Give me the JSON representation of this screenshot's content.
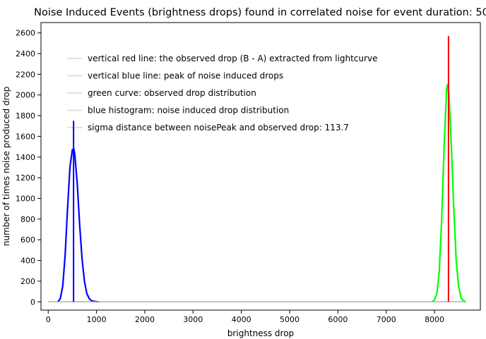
{
  "chart_data": {
    "type": "line",
    "title": "Noise Induced Events (brightness drops) found in correlated noise for event duration: 50",
    "xlabel": "brightness drop",
    "ylabel": "number of times noise produced drop",
    "xlim": [
      -150,
      8950
    ],
    "ylim": [
      -80,
      2700
    ],
    "x_ticks": [
      0,
      1000,
      2000,
      3000,
      4000,
      5000,
      6000,
      7000,
      8000
    ],
    "y_ticks": [
      0,
      200,
      400,
      600,
      800,
      1000,
      1200,
      1400,
      1600,
      1800,
      2000,
      2200,
      2400,
      2600
    ],
    "grid": false,
    "legend": {
      "placement": "top-left",
      "entries": [
        {
          "label": "vertical red line: the observed drop (B - A) extracted from lightcurve",
          "color": "#d8d8d8"
        },
        {
          "label": "vertical blue line: peak of noise induced drops",
          "color": "#d8d8d8"
        },
        {
          "label": "green curve: observed drop distribution",
          "color": "#d8d8d8"
        },
        {
          "label": "blue histogram: noise induced drop distribution",
          "color": "#d8d8d8"
        },
        {
          "label": "sigma distance between noisePeak and observed drop: 113.7",
          "color": "#d8d8d8"
        }
      ]
    },
    "series": [
      {
        "color": "#0000ff",
        "x": [
          200,
          250,
          300,
          350,
          400,
          450,
          500,
          530,
          550,
          600,
          650,
          700,
          750,
          800,
          850,
          900,
          950,
          1000,
          1050
        ],
        "y": [
          0,
          30,
          150,
          450,
          900,
          1300,
          1470,
          1480,
          1430,
          1150,
          750,
          420,
          200,
          80,
          30,
          10,
          5,
          2,
          0
        ]
      },
      {
        "color": "#00ff00",
        "x": [
          7950,
          8000,
          8050,
          8100,
          8150,
          8200,
          8250,
          8270,
          8300,
          8350,
          8400,
          8450,
          8500,
          8550,
          8600,
          8650
        ],
        "y": [
          0,
          20,
          80,
          300,
          800,
          1500,
          2050,
          2100,
          2000,
          1500,
          900,
          400,
          150,
          40,
          10,
          0
        ]
      },
      {
        "color": "#b0b0b0",
        "x": [
          0,
          8600
        ],
        "y": [
          0,
          0
        ]
      }
    ],
    "vertical_lines": [
      {
        "color": "#0000ff",
        "x": 525,
        "y": 1750
      },
      {
        "color": "#ff0000",
        "x": 8290,
        "y": 2570
      }
    ]
  }
}
